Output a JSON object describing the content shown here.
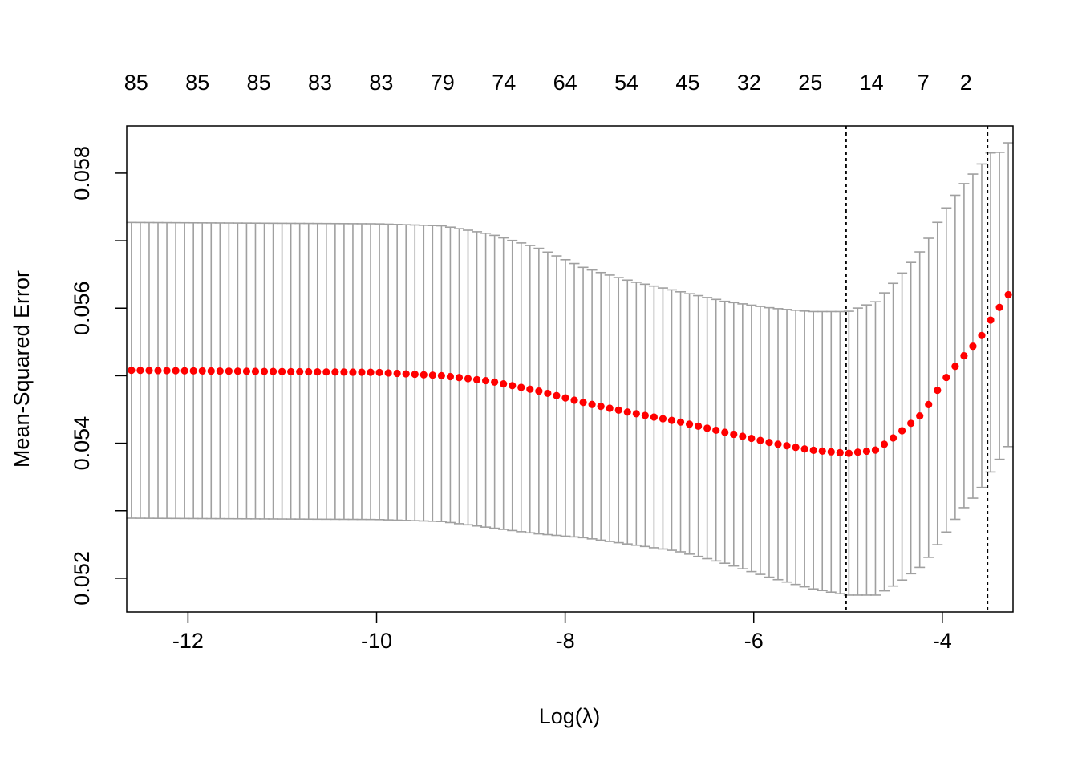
{
  "chart_data": {
    "type": "scatter",
    "xlabel": "Log(λ)",
    "ylabel": "Mean-Squared Error",
    "xlim": [
      -12.65,
      -3.25
    ],
    "ylim": [
      0.0515,
      0.0587
    ],
    "x_ticks": [
      -12,
      -10,
      -8,
      -6,
      -4
    ],
    "x_tick_labels": [
      "-12",
      "-10",
      "-8",
      "-6",
      "-4"
    ],
    "y_ticks": [
      0.052,
      0.054,
      0.056,
      0.058
    ],
    "y_tick_labels": [
      "0.052",
      "0.054",
      "0.056",
      "0.058"
    ],
    "top_axis": {
      "x": [
        -12.55,
        -11.9,
        -11.25,
        -10.6,
        -9.95,
        -9.3,
        -8.65,
        -8.0,
        -7.35,
        -6.7,
        -6.05,
        -5.4,
        -4.75,
        -4.2,
        -3.75
      ],
      "labels": [
        "85",
        "85",
        "85",
        "83",
        "83",
        "79",
        "74",
        "64",
        "54",
        "45",
        "32",
        "25",
        "14",
        "7",
        "2"
      ]
    },
    "vlines": [
      -5.02,
      -3.52
    ],
    "grid": false,
    "legend": "none",
    "colors": {
      "points": "#ff0000",
      "error_bars": "#a0a0a0",
      "vlines": "#000000",
      "axes": "#000000"
    },
    "curve_keypoints": {
      "x": [
        -12.6,
        -10.0,
        -9.3,
        -8.8,
        -8.3,
        -7.8,
        -7.3,
        -6.8,
        -6.3,
        -5.8,
        -5.4,
        -5.0,
        -4.7,
        -4.5,
        -4.2,
        -4.0,
        -3.8,
        -3.6,
        -3.5,
        -3.4,
        -3.3
      ],
      "mean": [
        0.05508,
        0.05505,
        0.055,
        0.05492,
        0.05478,
        0.0546,
        0.05445,
        0.05432,
        0.05416,
        0.054,
        0.0539,
        0.05385,
        0.0539,
        0.0541,
        0.05445,
        0.0549,
        0.05525,
        0.05555,
        0.0558,
        0.056,
        0.0562
      ],
      "upper": [
        0.05727,
        0.05725,
        0.05722,
        0.0571,
        0.0569,
        0.0566,
        0.0564,
        0.05625,
        0.0561,
        0.056,
        0.05595,
        0.05595,
        0.0561,
        0.0564,
        0.0569,
        0.0574,
        0.0578,
        0.0581,
        0.0583,
        0.0583,
        0.05845
      ],
      "lower": [
        0.05289,
        0.05287,
        0.05284,
        0.05275,
        0.05266,
        0.0526,
        0.0525,
        0.0524,
        0.05222,
        0.052,
        0.05185,
        0.05175,
        0.05175,
        0.0519,
        0.0522,
        0.0526,
        0.053,
        0.0533,
        0.05355,
        0.05375,
        0.05395
      ]
    },
    "n_points": 100
  }
}
